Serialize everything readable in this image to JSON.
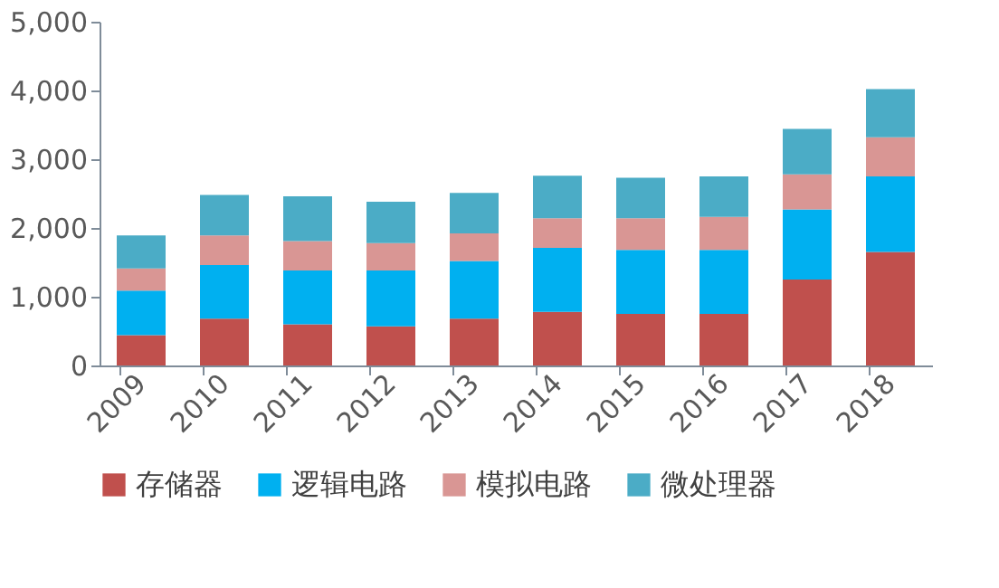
{
  "chart_data": {
    "type": "bar",
    "stacked": true,
    "categories": [
      "2009",
      "2010",
      "2011",
      "2012",
      "2013",
      "2014",
      "2015",
      "2016",
      "2017",
      "2018"
    ],
    "series": [
      {
        "name": "存储器",
        "color": "#c0504d",
        "values": [
          440,
          680,
          600,
          570,
          680,
          780,
          750,
          750,
          1250,
          1650
        ]
      },
      {
        "name": "逻辑电路",
        "color": "#00b0f0",
        "values": [
          650,
          780,
          780,
          810,
          840,
          930,
          930,
          930,
          1020,
          1100
        ]
      },
      {
        "name": "模拟电路",
        "color": "#d99694",
        "values": [
          320,
          430,
          430,
          400,
          400,
          430,
          460,
          480,
          510,
          570
        ]
      },
      {
        "name": "微处理器",
        "color": "#4bacc6",
        "values": [
          480,
          590,
          650,
          600,
          590,
          620,
          590,
          590,
          660,
          700
        ]
      }
    ],
    "ylim": [
      0,
      5000
    ],
    "yticks": [
      0,
      {
        "value": 1000,
        "label": "1,000"
      },
      {
        "value": 2000,
        "label": "2,000"
      },
      {
        "value": 3000,
        "label": "3,000"
      },
      {
        "value": 4000,
        "label": "4,000"
      },
      {
        "value": 5000,
        "label": "5,000"
      }
    ],
    "grid": false,
    "legend": "bottom"
  }
}
